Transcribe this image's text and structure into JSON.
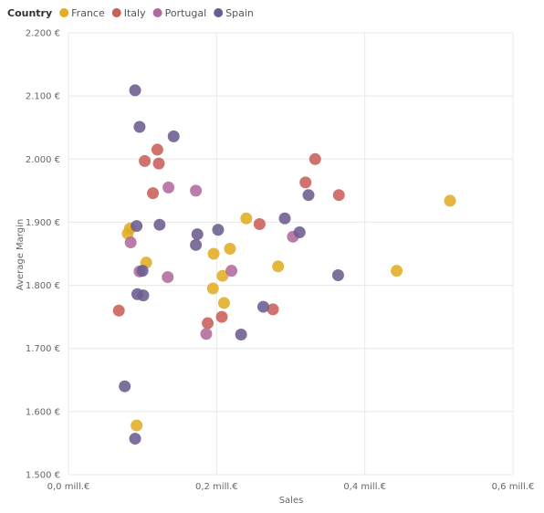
{
  "chart_data": {
    "type": "scatter",
    "legend": {
      "title": "Country",
      "placement": "top-left",
      "entries": [
        "France",
        "Italy",
        "Portugal",
        "Spain"
      ]
    },
    "xlabel": "Sales",
    "ylabel": "Average Margin",
    "xlim": [
      0,
      0.6
    ],
    "ylim": [
      1500,
      2200
    ],
    "x_ticks": [
      0,
      0.2,
      0.4,
      0.6
    ],
    "x_tick_labels": [
      "0,0 mill.€",
      "0,2 mill.€",
      "0,4 mill.€",
      "0,6 mill.€"
    ],
    "y_ticks": [
      1500,
      1600,
      1700,
      1800,
      1900,
      2000,
      2100,
      2200
    ],
    "y_tick_labels": [
      "1.500 €",
      "1.600 €",
      "1.700 €",
      "1.800 €",
      "1.900 €",
      "2.000 €",
      "2.100 €",
      "2.200 €"
    ],
    "grid": true,
    "series": [
      {
        "name": "France",
        "color": "#E3AD24",
        "points": [
          {
            "x": 0.08,
            "y": 1882
          },
          {
            "x": 0.083,
            "y": 1890
          },
          {
            "x": 0.105,
            "y": 1836
          },
          {
            "x": 0.092,
            "y": 1578
          },
          {
            "x": 0.196,
            "y": 1850
          },
          {
            "x": 0.208,
            "y": 1815
          },
          {
            "x": 0.218,
            "y": 1858
          },
          {
            "x": 0.195,
            "y": 1795
          },
          {
            "x": 0.21,
            "y": 1772
          },
          {
            "x": 0.24,
            "y": 1906
          },
          {
            "x": 0.283,
            "y": 1830
          },
          {
            "x": 0.443,
            "y": 1823
          },
          {
            "x": 0.515,
            "y": 1934
          }
        ]
      },
      {
        "name": "Italy",
        "color": "#C9605A",
        "points": [
          {
            "x": 0.068,
            "y": 1760
          },
          {
            "x": 0.103,
            "y": 1997
          },
          {
            "x": 0.12,
            "y": 2015
          },
          {
            "x": 0.122,
            "y": 1993
          },
          {
            "x": 0.114,
            "y": 1946
          },
          {
            "x": 0.188,
            "y": 1740
          },
          {
            "x": 0.207,
            "y": 1750
          },
          {
            "x": 0.258,
            "y": 1897
          },
          {
            "x": 0.276,
            "y": 1762
          },
          {
            "x": 0.32,
            "y": 1963
          },
          {
            "x": 0.333,
            "y": 2000
          },
          {
            "x": 0.365,
            "y": 1943
          }
        ]
      },
      {
        "name": "Portugal",
        "color": "#B26A9E",
        "points": [
          {
            "x": 0.084,
            "y": 1868
          },
          {
            "x": 0.096,
            "y": 1822
          },
          {
            "x": 0.135,
            "y": 1955
          },
          {
            "x": 0.134,
            "y": 1813
          },
          {
            "x": 0.172,
            "y": 1950
          },
          {
            "x": 0.186,
            "y": 1723
          },
          {
            "x": 0.22,
            "y": 1823
          },
          {
            "x": 0.303,
            "y": 1877
          }
        ]
      },
      {
        "name": "Spain",
        "color": "#6B5C8E",
        "points": [
          {
            "x": 0.09,
            "y": 2109
          },
          {
            "x": 0.096,
            "y": 2051
          },
          {
            "x": 0.142,
            "y": 2036
          },
          {
            "x": 0.092,
            "y": 1894
          },
          {
            "x": 0.123,
            "y": 1896
          },
          {
            "x": 0.1,
            "y": 1823
          },
          {
            "x": 0.093,
            "y": 1786
          },
          {
            "x": 0.101,
            "y": 1784
          },
          {
            "x": 0.076,
            "y": 1640
          },
          {
            "x": 0.09,
            "y": 1557
          },
          {
            "x": 0.174,
            "y": 1881
          },
          {
            "x": 0.172,
            "y": 1864
          },
          {
            "x": 0.202,
            "y": 1888
          },
          {
            "x": 0.233,
            "y": 1722
          },
          {
            "x": 0.263,
            "y": 1766
          },
          {
            "x": 0.292,
            "y": 1906
          },
          {
            "x": 0.324,
            "y": 1943
          },
          {
            "x": 0.312,
            "y": 1884
          },
          {
            "x": 0.364,
            "y": 1816
          }
        ]
      }
    ]
  }
}
